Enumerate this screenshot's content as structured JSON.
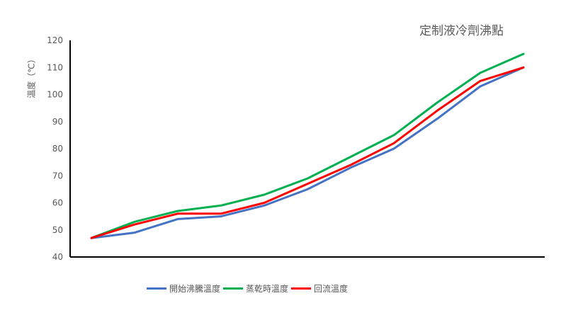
{
  "chart_data": {
    "type": "line",
    "title": "定制液冷劑沸點",
    "ylabel": "溫度（℃）",
    "xlabel": "",
    "ylim": [
      40,
      120
    ],
    "yticks": [
      40,
      50,
      60,
      70,
      80,
      90,
      100,
      110,
      120
    ],
    "x_points": 11,
    "grid": false,
    "legend_position": "bottom",
    "series": [
      {
        "name": "開始沸騰溫度",
        "color": "#4472C4",
        "values": [
          47,
          49,
          54,
          55,
          59,
          65,
          73,
          80,
          91,
          103,
          110
        ]
      },
      {
        "name": "蒸乾時溫度",
        "color": "#00B050",
        "values": [
          47,
          53,
          57,
          59,
          63,
          69,
          77,
          85,
          97,
          108,
          115
        ]
      },
      {
        "name": "回流溫度",
        "color": "#FF0000",
        "values": [
          47,
          52,
          56,
          56,
          60,
          67,
          74,
          82,
          94,
          105,
          110
        ]
      }
    ]
  }
}
